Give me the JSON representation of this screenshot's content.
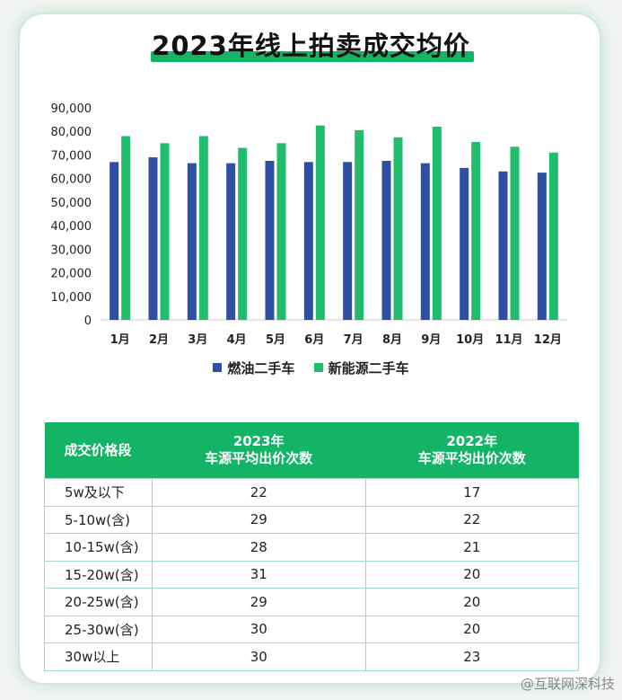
{
  "title": "2023年线上拍卖成交均价",
  "chart_data": {
    "type": "bar",
    "categories": [
      "1月",
      "2月",
      "3月",
      "4月",
      "5月",
      "6月",
      "7月",
      "8月",
      "9月",
      "10月",
      "11月",
      "12月"
    ],
    "series": [
      {
        "name": "燃油二手车",
        "color": "#2e4fa3",
        "values": [
          67000,
          69000,
          66500,
          66500,
          67500,
          67000,
          67000,
          67500,
          66500,
          64500,
          63000,
          62500
        ]
      },
      {
        "name": "新能源二手车",
        "color": "#1fbd6c",
        "values": [
          78000,
          75000,
          78000,
          73000,
          75000,
          82500,
          80500,
          77500,
          82000,
          75500,
          73500,
          71000
        ]
      }
    ],
    "ylim": [
      0,
      90000
    ],
    "yticks": [
      "0",
      "10,000",
      "20,000",
      "30,000",
      "40,000",
      "50,000",
      "60,000",
      "70,000",
      "80,000",
      "90,000"
    ],
    "title": "",
    "xlabel": "",
    "ylabel": "",
    "legend": "bottom",
    "grid": false
  },
  "table": {
    "headers": [
      {
        "line1": "成交价格段",
        "line2": ""
      },
      {
        "line1": "2023年",
        "line2": "车源平均出价次数"
      },
      {
        "line1": "2022年",
        "line2": "车源平均出价次数"
      }
    ],
    "rows": [
      [
        "5w及以下",
        "22",
        "17"
      ],
      [
        "5-10w(含)",
        "29",
        "22"
      ],
      [
        "10-15w(含)",
        "28",
        "21"
      ],
      [
        "15-20w(含)",
        "31",
        "20"
      ],
      [
        "20-25w(含)",
        "29",
        "20"
      ],
      [
        "25-30w(含)",
        "30",
        "20"
      ],
      [
        "30w以上",
        "30",
        "23"
      ]
    ]
  },
  "watermark": "@互联网深科技"
}
